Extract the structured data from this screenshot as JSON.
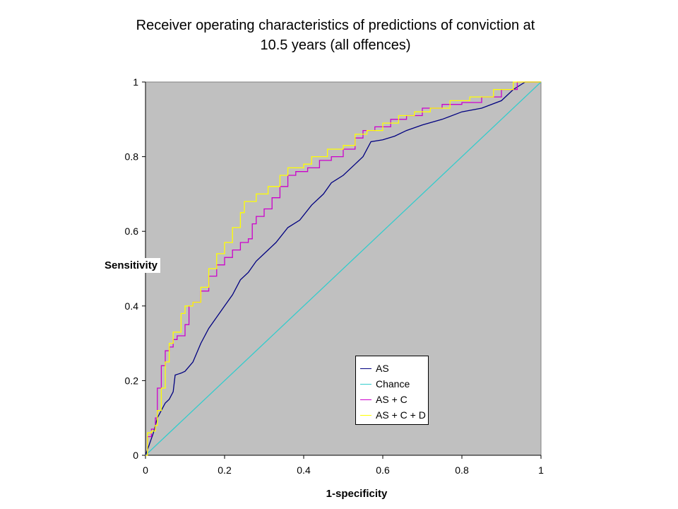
{
  "chart_data": {
    "type": "line",
    "title_lines": [
      "Receiver operating characteristics of predictions of conviction at",
      "10.5 years (all offences)"
    ],
    "xlabel": "1-specificity",
    "ylabel": "Sensitivity",
    "xlim": [
      0,
      1
    ],
    "ylim": [
      0,
      1
    ],
    "x_ticks": [
      "0",
      "0.2",
      "0.4",
      "0.6",
      "0.8",
      "1"
    ],
    "y_ticks": [
      "0",
      "0.2",
      "0.4",
      "0.6",
      "0.8",
      "1"
    ],
    "grid": false,
    "background": "#c0c0c0",
    "legend_position": "bottom-right inside plot",
    "series": [
      {
        "name": "AS",
        "color": "#000080",
        "step": false,
        "points": [
          [
            0,
            0
          ],
          [
            0.01,
            0.03
          ],
          [
            0.02,
            0.06
          ],
          [
            0.03,
            0.1
          ],
          [
            0.04,
            0.12
          ],
          [
            0.05,
            0.14
          ],
          [
            0.06,
            0.15
          ],
          [
            0.07,
            0.17
          ],
          [
            0.075,
            0.215
          ],
          [
            0.09,
            0.22
          ],
          [
            0.1,
            0.225
          ],
          [
            0.12,
            0.25
          ],
          [
            0.14,
            0.3
          ],
          [
            0.16,
            0.34
          ],
          [
            0.18,
            0.37
          ],
          [
            0.2,
            0.4
          ],
          [
            0.22,
            0.43
          ],
          [
            0.24,
            0.47
          ],
          [
            0.26,
            0.49
          ],
          [
            0.28,
            0.52
          ],
          [
            0.3,
            0.54
          ],
          [
            0.33,
            0.57
          ],
          [
            0.36,
            0.61
          ],
          [
            0.39,
            0.63
          ],
          [
            0.42,
            0.67
          ],
          [
            0.45,
            0.7
          ],
          [
            0.47,
            0.73
          ],
          [
            0.5,
            0.75
          ],
          [
            0.53,
            0.78
          ],
          [
            0.55,
            0.8
          ],
          [
            0.57,
            0.84
          ],
          [
            0.6,
            0.845
          ],
          [
            0.63,
            0.855
          ],
          [
            0.66,
            0.87
          ],
          [
            0.7,
            0.885
          ],
          [
            0.75,
            0.9
          ],
          [
            0.8,
            0.92
          ],
          [
            0.85,
            0.93
          ],
          [
            0.9,
            0.95
          ],
          [
            0.93,
            0.98
          ],
          [
            0.96,
            1.0
          ],
          [
            1.0,
            1.0
          ]
        ]
      },
      {
        "name": "Chance",
        "color": "#33cccc",
        "step": false,
        "points": [
          [
            0,
            0
          ],
          [
            1,
            1
          ]
        ]
      },
      {
        "name": "AS + C",
        "color": "#cc00cc",
        "step": true,
        "points": [
          [
            0,
            0
          ],
          [
            0.005,
            0.05
          ],
          [
            0.015,
            0.07
          ],
          [
            0.025,
            0.1
          ],
          [
            0.03,
            0.18
          ],
          [
            0.04,
            0.24
          ],
          [
            0.05,
            0.28
          ],
          [
            0.06,
            0.29
          ],
          [
            0.07,
            0.31
          ],
          [
            0.08,
            0.32
          ],
          [
            0.1,
            0.35
          ],
          [
            0.11,
            0.4
          ],
          [
            0.12,
            0.41
          ],
          [
            0.14,
            0.44
          ],
          [
            0.16,
            0.48
          ],
          [
            0.18,
            0.51
          ],
          [
            0.2,
            0.53
          ],
          [
            0.22,
            0.55
          ],
          [
            0.24,
            0.57
          ],
          [
            0.26,
            0.58
          ],
          [
            0.27,
            0.62
          ],
          [
            0.28,
            0.64
          ],
          [
            0.3,
            0.66
          ],
          [
            0.32,
            0.69
          ],
          [
            0.34,
            0.72
          ],
          [
            0.36,
            0.75
          ],
          [
            0.38,
            0.76
          ],
          [
            0.41,
            0.77
          ],
          [
            0.44,
            0.79
          ],
          [
            0.47,
            0.8
          ],
          [
            0.5,
            0.82
          ],
          [
            0.53,
            0.85
          ],
          [
            0.55,
            0.87
          ],
          [
            0.58,
            0.88
          ],
          [
            0.62,
            0.9
          ],
          [
            0.66,
            0.91
          ],
          [
            0.7,
            0.93
          ],
          [
            0.75,
            0.94
          ],
          [
            0.8,
            0.945
          ],
          [
            0.85,
            0.96
          ],
          [
            0.9,
            0.98
          ],
          [
            0.94,
            1.0
          ],
          [
            1.0,
            1.0
          ]
        ]
      },
      {
        "name": "AS + C + D",
        "color": "#ffff00",
        "step": true,
        "points": [
          [
            0,
            0
          ],
          [
            0.005,
            0.06
          ],
          [
            0.015,
            0.065
          ],
          [
            0.025,
            0.08
          ],
          [
            0.03,
            0.12
          ],
          [
            0.04,
            0.18
          ],
          [
            0.05,
            0.25
          ],
          [
            0.06,
            0.3
          ],
          [
            0.07,
            0.33
          ],
          [
            0.09,
            0.38
          ],
          [
            0.1,
            0.4
          ],
          [
            0.12,
            0.41
          ],
          [
            0.14,
            0.45
          ],
          [
            0.16,
            0.5
          ],
          [
            0.18,
            0.54
          ],
          [
            0.2,
            0.57
          ],
          [
            0.22,
            0.61
          ],
          [
            0.24,
            0.65
          ],
          [
            0.25,
            0.68
          ],
          [
            0.28,
            0.7
          ],
          [
            0.31,
            0.72
          ],
          [
            0.34,
            0.75
          ],
          [
            0.36,
            0.77
          ],
          [
            0.4,
            0.78
          ],
          [
            0.42,
            0.8
          ],
          [
            0.46,
            0.82
          ],
          [
            0.5,
            0.83
          ],
          [
            0.53,
            0.86
          ],
          [
            0.56,
            0.87
          ],
          [
            0.6,
            0.89
          ],
          [
            0.64,
            0.91
          ],
          [
            0.68,
            0.92
          ],
          [
            0.72,
            0.93
          ],
          [
            0.77,
            0.95
          ],
          [
            0.82,
            0.96
          ],
          [
            0.88,
            0.98
          ],
          [
            0.93,
            1.0
          ],
          [
            1.0,
            1.0
          ]
        ]
      }
    ]
  }
}
